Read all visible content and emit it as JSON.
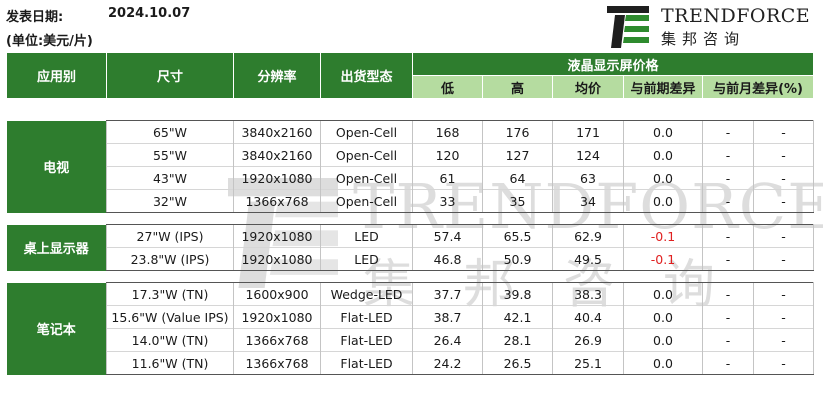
{
  "header": {
    "date_label": "发表日期:",
    "date_value": "2024.10.07",
    "unit_label": "(单位:美元/片)"
  },
  "logo": {
    "name": "TRENDFORCE",
    "cn": "集邦咨询"
  },
  "colors": {
    "header_green": "#2e7d2e",
    "subheader_green": "#b5dca0",
    "negative": "#e02020"
  },
  "table": {
    "headers": {
      "application": "应用别",
      "size": "尺寸",
      "resolution": "分辨率",
      "shipment": "出货型态",
      "price_group": "液晶显示屏价格",
      "low": "低",
      "high": "高",
      "avg": "均价",
      "prev_period": "与前期差异",
      "prev_month": "与前月差异(%)"
    },
    "groups": [
      {
        "category": "电视",
        "rows": [
          {
            "size": "65\"W",
            "resolution": "3840x2160",
            "type": "Open-Cell",
            "low": "168",
            "high": "176",
            "avg": "171",
            "diff": "0.0",
            "mom_a": "-",
            "mom_b": "-"
          },
          {
            "size": "55\"W",
            "resolution": "3840x2160",
            "type": "Open-Cell",
            "low": "120",
            "high": "127",
            "avg": "124",
            "diff": "0.0",
            "mom_a": "-",
            "mom_b": "-"
          },
          {
            "size": "43\"W",
            "resolution": "1920x1080",
            "type": "Open-Cell",
            "low": "61",
            "high": "64",
            "avg": "63",
            "diff": "0.0",
            "mom_a": "-",
            "mom_b": "-"
          },
          {
            "size": "32\"W",
            "resolution": "1366x768",
            "type": "Open-Cell",
            "low": "33",
            "high": "35",
            "avg": "34",
            "diff": "0.0",
            "mom_a": "-",
            "mom_b": "-"
          }
        ]
      },
      {
        "category": "桌上显示器",
        "rows": [
          {
            "size": "27\"W (IPS)",
            "resolution": "1920x1080",
            "type": "LED",
            "low": "57.4",
            "high": "65.5",
            "avg": "62.9",
            "diff": "-0.1",
            "mom_a": "-",
            "mom_b": "-"
          },
          {
            "size": "23.8\"W (IPS)",
            "resolution": "1920x1080",
            "type": "LED",
            "low": "46.8",
            "high": "50.9",
            "avg": "49.5",
            "diff": "-0.1",
            "mom_a": "-",
            "mom_b": "-"
          }
        ]
      },
      {
        "category": "笔记本",
        "rows": [
          {
            "size": "17.3\"W (TN)",
            "resolution": "1600x900",
            "type": "Wedge-LED",
            "low": "37.7",
            "high": "39.8",
            "avg": "38.3",
            "diff": "0.0",
            "mom_a": "-",
            "mom_b": "-"
          },
          {
            "size": "15.6\"W (Value IPS)",
            "resolution": "1920x1080",
            "type": "Flat-LED",
            "low": "38.7",
            "high": "42.1",
            "avg": "40.4",
            "diff": "0.0",
            "mom_a": "-",
            "mom_b": "-"
          },
          {
            "size": "14.0\"W (TN)",
            "resolution": "1366x768",
            "type": "Flat-LED",
            "low": "26.4",
            "high": "28.1",
            "avg": "26.9",
            "diff": "0.0",
            "mom_a": "-",
            "mom_b": "-"
          },
          {
            "size": "11.6\"W (TN)",
            "resolution": "1366x768",
            "type": "Flat-LED",
            "low": "24.2",
            "high": "26.5",
            "avg": "25.1",
            "diff": "0.0",
            "mom_a": "-",
            "mom_b": "-"
          }
        ]
      }
    ]
  }
}
